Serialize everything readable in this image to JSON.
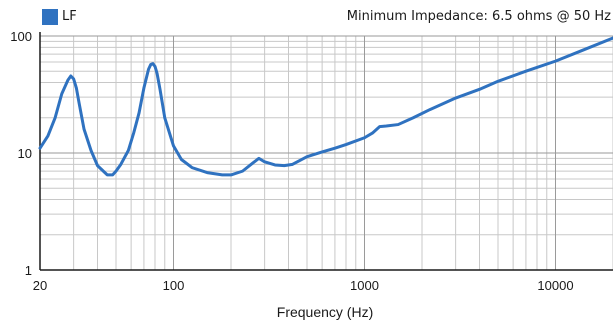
{
  "chart_data": {
    "type": "line",
    "title": "",
    "note": "Minimum Impedance:  6.5 ohms @ 50 Hz",
    "xlabel": "Frequency (Hz)",
    "ylabel": "",
    "x_scale": "log",
    "y_scale": "log",
    "xlim": [
      20,
      20000
    ],
    "ylim": [
      1,
      100
    ],
    "x_ticks": [
      20,
      100,
      1000,
      10000
    ],
    "x_tick_labels": [
      "20",
      "100",
      "1000",
      "10000"
    ],
    "y_ticks": [
      1,
      10,
      100
    ],
    "y_tick_labels": [
      "1",
      "10",
      "100"
    ],
    "grid": true,
    "legend_position": "top-left",
    "series": [
      {
        "name": "LF",
        "color": "#2f72c0",
        "x": [
          20,
          22,
          24,
          26,
          28,
          29,
          30,
          31,
          32,
          34,
          37,
          40,
          45,
          48,
          50,
          53,
          58,
          62,
          66,
          70,
          74,
          76,
          78,
          80,
          82,
          85,
          90,
          100,
          110,
          125,
          150,
          180,
          200,
          230,
          260,
          280,
          300,
          340,
          380,
          420,
          500,
          600,
          700,
          800,
          1000,
          1100,
          1200,
          1300,
          1500,
          1800,
          2200,
          3000,
          4000,
          5000,
          7000,
          10000,
          14000,
          20000
        ],
        "values": [
          11,
          14,
          20,
          32,
          42,
          45.5,
          43,
          36,
          27,
          16,
          10.5,
          7.8,
          6.5,
          6.5,
          7,
          8,
          10.5,
          15,
          22,
          36,
          52,
          57,
          58,
          55,
          48,
          35,
          20,
          11.5,
          8.8,
          7.5,
          6.8,
          6.5,
          6.5,
          7,
          8.2,
          9,
          8.4,
          7.9,
          7.8,
          8,
          9.3,
          10.2,
          11,
          11.8,
          13.5,
          14.8,
          16.8,
          17,
          17.5,
          20,
          23.5,
          29.5,
          35,
          41,
          50,
          61,
          76,
          96
        ]
      }
    ]
  }
}
